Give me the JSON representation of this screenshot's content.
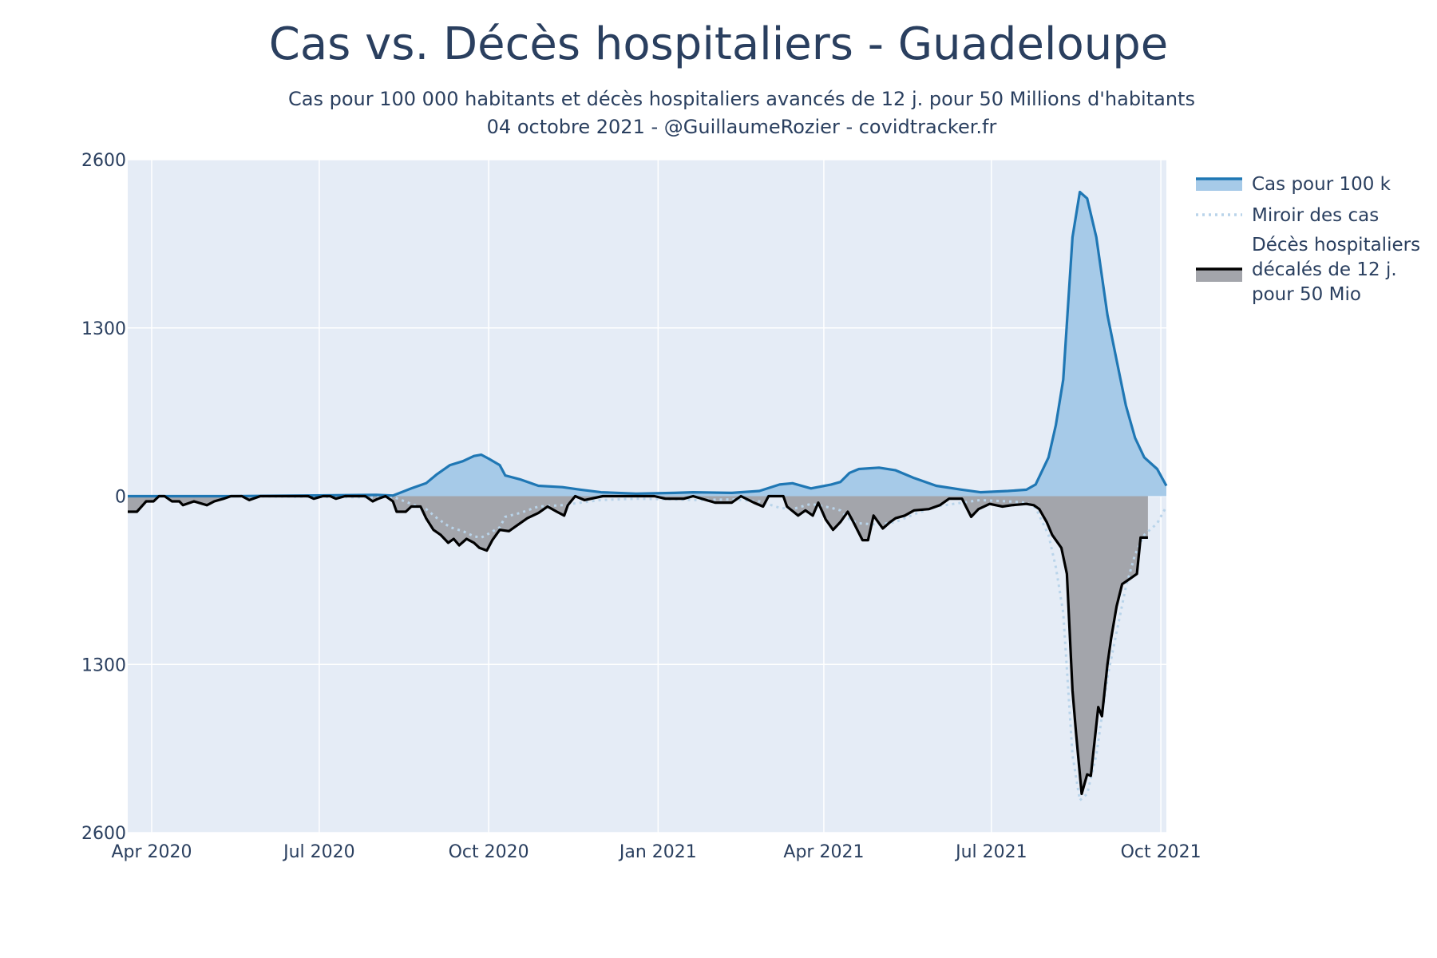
{
  "chart_data": {
    "type": "area",
    "title": "Cas vs. Décès hospitaliers - Guadeloupe",
    "subtitle_line1": "Cas pour 100 000 habitants et décès hospitaliers avancés de 12 j. pour 50 Millions d'habitants",
    "subtitle_line2": "04 octobre 2021 - @GuillaumeRozier - covidtracker.fr",
    "xlabel": "",
    "ylabel": "",
    "x_range": [
      "2020-03-19",
      "2021-10-04"
    ],
    "ylim": [
      -2600,
      2600
    ],
    "y_ticks": [
      {
        "value": 2600,
        "label": "2600"
      },
      {
        "value": 1300,
        "label": "1300"
      },
      {
        "value": 0,
        "label": "0"
      },
      {
        "value": -1300,
        "label": "1300"
      },
      {
        "value": -2600,
        "label": "2600"
      }
    ],
    "x_ticks": [
      {
        "date": "2020-04-01",
        "label": "Apr 2020"
      },
      {
        "date": "2020-07-01",
        "label": "Jul 2020"
      },
      {
        "date": "2020-10-01",
        "label": "Oct 2020"
      },
      {
        "date": "2021-01-01",
        "label": "Jan 2021"
      },
      {
        "date": "2021-04-01",
        "label": "Apr 2021"
      },
      {
        "date": "2021-07-01",
        "label": "Jul 2021"
      },
      {
        "date": "2021-10-01",
        "label": "Oct 2021"
      }
    ],
    "grid": true,
    "legend_position": "right",
    "colors": {
      "plot_bg": "#e5ecf6",
      "cases_line": "#1f77b4",
      "cases_fill": "#a6cae8",
      "mirror_line": "#b9d4ea",
      "deaths_line": "#000000",
      "deaths_fill": "#a3a5ab"
    },
    "series": [
      {
        "name": "Cas pour 100 k",
        "style": "solid-line-filled-to-zero",
        "points": [
          [
            "2020-03-19",
            0
          ],
          [
            "2020-05-15",
            0
          ],
          [
            "2020-08-01",
            10
          ],
          [
            "2020-08-10",
            5
          ],
          [
            "2020-08-20",
            60
          ],
          [
            "2020-08-28",
            100
          ],
          [
            "2020-09-03",
            170
          ],
          [
            "2020-09-10",
            240
          ],
          [
            "2020-09-17",
            270
          ],
          [
            "2020-09-23",
            310
          ],
          [
            "2020-09-27",
            320
          ],
          [
            "2020-10-01",
            290
          ],
          [
            "2020-10-07",
            240
          ],
          [
            "2020-10-10",
            160
          ],
          [
            "2020-10-18",
            130
          ],
          [
            "2020-10-28",
            80
          ],
          [
            "2020-11-10",
            70
          ],
          [
            "2020-11-20",
            50
          ],
          [
            "2020-12-01",
            30
          ],
          [
            "2020-12-20",
            20
          ],
          [
            "2021-01-10",
            25
          ],
          [
            "2021-01-20",
            30
          ],
          [
            "2021-02-10",
            25
          ],
          [
            "2021-02-25",
            40
          ],
          [
            "2021-03-08",
            90
          ],
          [
            "2021-03-15",
            100
          ],
          [
            "2021-03-25",
            60
          ],
          [
            "2021-04-05",
            90
          ],
          [
            "2021-04-10",
            110
          ],
          [
            "2021-04-15",
            180
          ],
          [
            "2021-04-20",
            210
          ],
          [
            "2021-05-01",
            220
          ],
          [
            "2021-05-10",
            200
          ],
          [
            "2021-05-20",
            140
          ],
          [
            "2021-06-01",
            80
          ],
          [
            "2021-06-15",
            50
          ],
          [
            "2021-06-25",
            30
          ],
          [
            "2021-07-10",
            40
          ],
          [
            "2021-07-20",
            50
          ],
          [
            "2021-07-25",
            90
          ],
          [
            "2021-08-01",
            300
          ],
          [
            "2021-08-05",
            550
          ],
          [
            "2021-08-09",
            900
          ],
          [
            "2021-08-14",
            2000
          ],
          [
            "2021-08-18",
            2350
          ],
          [
            "2021-08-22",
            2300
          ],
          [
            "2021-08-27",
            2000
          ],
          [
            "2021-09-02",
            1400
          ],
          [
            "2021-09-07",
            1050
          ],
          [
            "2021-09-12",
            700
          ],
          [
            "2021-09-17",
            450
          ],
          [
            "2021-09-22",
            300
          ],
          [
            "2021-09-29",
            210
          ],
          [
            "2021-10-04",
            80
          ]
        ]
      },
      {
        "name": "Miroir des cas",
        "style": "dotted-line",
        "points": [
          [
            "2020-03-19",
            0
          ],
          [
            "2020-05-15",
            0
          ],
          [
            "2020-08-01",
            -10
          ],
          [
            "2020-08-10",
            -5
          ],
          [
            "2020-08-20",
            -60
          ],
          [
            "2020-08-28",
            -100
          ],
          [
            "2020-09-03",
            -170
          ],
          [
            "2020-09-10",
            -240
          ],
          [
            "2020-09-17",
            -270
          ],
          [
            "2020-09-23",
            -310
          ],
          [
            "2020-09-27",
            -320
          ],
          [
            "2020-10-01",
            -290
          ],
          [
            "2020-10-07",
            -240
          ],
          [
            "2020-10-10",
            -160
          ],
          [
            "2020-10-18",
            -130
          ],
          [
            "2020-10-28",
            -80
          ],
          [
            "2020-11-10",
            -70
          ],
          [
            "2020-11-20",
            -50
          ],
          [
            "2020-12-01",
            -30
          ],
          [
            "2020-12-20",
            -20
          ],
          [
            "2021-01-10",
            -25
          ],
          [
            "2021-01-20",
            -30
          ],
          [
            "2021-02-10",
            -25
          ],
          [
            "2021-02-25",
            -40
          ],
          [
            "2021-03-08",
            -90
          ],
          [
            "2021-03-15",
            -100
          ],
          [
            "2021-03-25",
            -60
          ],
          [
            "2021-04-05",
            -90
          ],
          [
            "2021-04-10",
            -110
          ],
          [
            "2021-04-15",
            -180
          ],
          [
            "2021-04-20",
            -210
          ],
          [
            "2021-05-01",
            -220
          ],
          [
            "2021-05-10",
            -200
          ],
          [
            "2021-05-20",
            -140
          ],
          [
            "2021-06-01",
            -80
          ],
          [
            "2021-06-15",
            -50
          ],
          [
            "2021-06-25",
            -30
          ],
          [
            "2021-07-10",
            -40
          ],
          [
            "2021-07-20",
            -50
          ],
          [
            "2021-07-25",
            -90
          ],
          [
            "2021-08-01",
            -300
          ],
          [
            "2021-08-05",
            -550
          ],
          [
            "2021-08-09",
            -900
          ],
          [
            "2021-08-14",
            -2000
          ],
          [
            "2021-08-18",
            -2350
          ],
          [
            "2021-08-22",
            -2300
          ],
          [
            "2021-08-27",
            -2000
          ],
          [
            "2021-09-02",
            -1400
          ],
          [
            "2021-09-07",
            -1050
          ],
          [
            "2021-09-12",
            -700
          ],
          [
            "2021-09-17",
            -450
          ],
          [
            "2021-09-22",
            -300
          ],
          [
            "2021-09-29",
            -210
          ],
          [
            "2021-10-04",
            -80
          ]
        ]
      },
      {
        "name": "Décès hospitaliers décalés de 12 j. pour 50 Mio",
        "legend_lines": [
          "Décès hospitaliers",
          "décalés de 12 j.",
          "pour 50 Mio"
        ],
        "style": "solid-line-filled-to-zero",
        "points": [
          [
            "2020-03-19",
            -120
          ],
          [
            "2020-03-24",
            -120
          ],
          [
            "2020-03-29",
            -40
          ],
          [
            "2020-04-02",
            -40
          ],
          [
            "2020-04-05",
            0
          ],
          [
            "2020-04-08",
            0
          ],
          [
            "2020-04-12",
            -40
          ],
          [
            "2020-04-16",
            -40
          ],
          [
            "2020-04-18",
            -70
          ],
          [
            "2020-04-24",
            -40
          ],
          [
            "2020-05-01",
            -70
          ],
          [
            "2020-05-05",
            -40
          ],
          [
            "2020-05-10",
            -20
          ],
          [
            "2020-05-14",
            0
          ],
          [
            "2020-05-20",
            0
          ],
          [
            "2020-05-24",
            -30
          ],
          [
            "2020-05-30",
            0
          ],
          [
            "2020-06-15",
            0
          ],
          [
            "2020-06-25",
            0
          ],
          [
            "2020-06-28",
            -20
          ],
          [
            "2020-07-03",
            0
          ],
          [
            "2020-07-07",
            0
          ],
          [
            "2020-07-10",
            -20
          ],
          [
            "2020-07-15",
            0
          ],
          [
            "2020-07-26",
            0
          ],
          [
            "2020-07-30",
            -40
          ],
          [
            "2020-08-02",
            -20
          ],
          [
            "2020-08-06",
            0
          ],
          [
            "2020-08-10",
            -40
          ],
          [
            "2020-08-12",
            -120
          ],
          [
            "2020-08-17",
            -120
          ],
          [
            "2020-08-20",
            -80
          ],
          [
            "2020-08-25",
            -80
          ],
          [
            "2020-08-28",
            -170
          ],
          [
            "2020-09-01",
            -260
          ],
          [
            "2020-09-05",
            -300
          ],
          [
            "2020-09-09",
            -360
          ],
          [
            "2020-09-12",
            -330
          ],
          [
            "2020-09-15",
            -380
          ],
          [
            "2020-09-19",
            -330
          ],
          [
            "2020-09-23",
            -360
          ],
          [
            "2020-09-26",
            -400
          ],
          [
            "2020-09-30",
            -420
          ],
          [
            "2020-10-03",
            -340
          ],
          [
            "2020-10-07",
            -260
          ],
          [
            "2020-10-12",
            -270
          ],
          [
            "2020-10-17",
            -220
          ],
          [
            "2020-10-22",
            -170
          ],
          [
            "2020-10-28",
            -130
          ],
          [
            "2020-11-02",
            -80
          ],
          [
            "2020-11-07",
            -120
          ],
          [
            "2020-11-11",
            -150
          ],
          [
            "2020-11-13",
            -70
          ],
          [
            "2020-11-17",
            0
          ],
          [
            "2020-11-22",
            -30
          ],
          [
            "2020-12-02",
            0
          ],
          [
            "2020-12-10",
            0
          ],
          [
            "2020-12-15",
            0
          ],
          [
            "2020-12-30",
            0
          ],
          [
            "2021-01-05",
            -20
          ],
          [
            "2021-01-15",
            -20
          ],
          [
            "2021-01-20",
            0
          ],
          [
            "2021-02-01",
            -50
          ],
          [
            "2021-02-10",
            -50
          ],
          [
            "2021-02-15",
            0
          ],
          [
            "2021-02-22",
            -50
          ],
          [
            "2021-02-27",
            -80
          ],
          [
            "2021-03-02",
            0
          ],
          [
            "2021-03-10",
            0
          ],
          [
            "2021-03-12",
            -80
          ],
          [
            "2021-03-18",
            -150
          ],
          [
            "2021-03-22",
            -110
          ],
          [
            "2021-03-26",
            -150
          ],
          [
            "2021-03-29",
            -50
          ],
          [
            "2021-04-02",
            -180
          ],
          [
            "2021-04-06",
            -260
          ],
          [
            "2021-04-10",
            -200
          ],
          [
            "2021-04-14",
            -120
          ],
          [
            "2021-04-17",
            -200
          ],
          [
            "2021-04-22",
            -340
          ],
          [
            "2021-04-25",
            -340
          ],
          [
            "2021-04-28",
            -150
          ],
          [
            "2021-05-03",
            -250
          ],
          [
            "2021-05-07",
            -200
          ],
          [
            "2021-05-10",
            -170
          ],
          [
            "2021-05-15",
            -150
          ],
          [
            "2021-05-20",
            -110
          ],
          [
            "2021-05-28",
            -100
          ],
          [
            "2021-06-03",
            -70
          ],
          [
            "2021-06-08",
            -20
          ],
          [
            "2021-06-15",
            -20
          ],
          [
            "2021-06-20",
            -160
          ],
          [
            "2021-06-24",
            -100
          ],
          [
            "2021-06-30",
            -60
          ],
          [
            "2021-07-07",
            -80
          ],
          [
            "2021-07-12",
            -70
          ],
          [
            "2021-07-20",
            -60
          ],
          [
            "2021-07-24",
            -70
          ],
          [
            "2021-07-27",
            -100
          ],
          [
            "2021-07-31",
            -200
          ],
          [
            "2021-08-03",
            -300
          ],
          [
            "2021-08-08",
            -400
          ],
          [
            "2021-08-11",
            -600
          ],
          [
            "2021-08-14",
            -1500
          ],
          [
            "2021-08-16",
            -1840
          ],
          [
            "2021-08-19",
            -2300
          ],
          [
            "2021-08-22",
            -2150
          ],
          [
            "2021-08-24",
            -2160
          ],
          [
            "2021-08-28",
            -1630
          ],
          [
            "2021-08-30",
            -1700
          ],
          [
            "2021-09-02",
            -1300
          ],
          [
            "2021-09-04",
            -1100
          ],
          [
            "2021-09-07",
            -850
          ],
          [
            "2021-09-10",
            -680
          ],
          [
            "2021-09-14",
            -640
          ],
          [
            "2021-09-18",
            -600
          ],
          [
            "2021-09-20",
            -320
          ],
          [
            "2021-09-24",
            -320
          ]
        ]
      }
    ]
  }
}
